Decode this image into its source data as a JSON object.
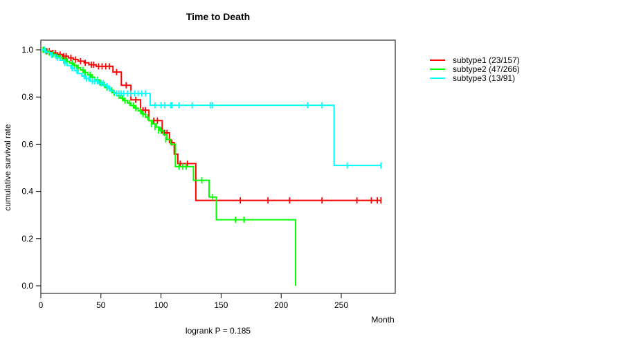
{
  "chart_data": {
    "type": "line",
    "subtype": "kaplan-meier-step-curves",
    "title": "Time to Death",
    "xlabel": "Month",
    "ylabel": "cumulative survival rate",
    "footer": "logrank P = 0.185",
    "grid": false,
    "legend_position": "right-outside",
    "colors": {
      "box": "#404040",
      "tick": "#000000",
      "text": "#000000"
    },
    "x_axis": {
      "ticks": [
        0,
        50,
        100,
        150,
        200,
        250
      ],
      "range": [
        0,
        295
      ]
    },
    "y_axis": {
      "ticks": [
        1.0,
        0.8,
        0.6,
        0.4,
        0.2,
        0.0
      ],
      "range": [
        0.0,
        1.0
      ],
      "decimals": 1
    },
    "series": [
      {
        "name": "subtype1 (23/157)",
        "color": "#ff0000",
        "end_month": 283,
        "steps": [
          [
            0,
            1.0
          ],
          [
            4,
            0.994
          ],
          [
            9,
            0.987
          ],
          [
            14,
            0.98
          ],
          [
            18,
            0.973
          ],
          [
            23,
            0.966
          ],
          [
            27,
            0.959
          ],
          [
            31,
            0.952
          ],
          [
            36,
            0.945
          ],
          [
            40,
            0.937
          ],
          [
            46,
            0.93
          ],
          [
            60,
            0.906
          ],
          [
            67,
            0.85
          ],
          [
            75,
            0.788
          ],
          [
            83,
            0.744
          ],
          [
            90,
            0.7
          ],
          [
            101,
            0.648
          ],
          [
            107,
            0.607
          ],
          [
            111,
            0.558
          ],
          [
            114,
            0.518
          ],
          [
            129,
            0.362
          ]
        ],
        "censors": [
          [
            2,
            1.0
          ],
          [
            5,
            0.994
          ],
          [
            7,
            0.994
          ],
          [
            10,
            0.987
          ],
          [
            12,
            0.987
          ],
          [
            16,
            0.98
          ],
          [
            19,
            0.973
          ],
          [
            21,
            0.973
          ],
          [
            25,
            0.966
          ],
          [
            29,
            0.959
          ],
          [
            33,
            0.952
          ],
          [
            37,
            0.945
          ],
          [
            42,
            0.937
          ],
          [
            44,
            0.937
          ],
          [
            48,
            0.93
          ],
          [
            51,
            0.93
          ],
          [
            54,
            0.93
          ],
          [
            57,
            0.93
          ],
          [
            63,
            0.906
          ],
          [
            71,
            0.85
          ],
          [
            79,
            0.788
          ],
          [
            85,
            0.744
          ],
          [
            87,
            0.744
          ],
          [
            94,
            0.7
          ],
          [
            97,
            0.7
          ],
          [
            103,
            0.648
          ],
          [
            105,
            0.648
          ],
          [
            109,
            0.607
          ],
          [
            116,
            0.518
          ],
          [
            122,
            0.518
          ],
          [
            166,
            0.362
          ],
          [
            189,
            0.362
          ],
          [
            207,
            0.362
          ],
          [
            234,
            0.362
          ],
          [
            263,
            0.362
          ],
          [
            275,
            0.362
          ],
          [
            280,
            0.362
          ],
          [
            283,
            0.362
          ]
        ]
      },
      {
        "name": "subtype2 (47/266)",
        "color": "#00ff00",
        "end_month": 212,
        "steps": [
          [
            0,
            1.0
          ],
          [
            3,
            0.994
          ],
          [
            6,
            0.988
          ],
          [
            9,
            0.981
          ],
          [
            12,
            0.974
          ],
          [
            15,
            0.967
          ],
          [
            18,
            0.959
          ],
          [
            21,
            0.951
          ],
          [
            24,
            0.943
          ],
          [
            27,
            0.934
          ],
          [
            30,
            0.924
          ],
          [
            33,
            0.914
          ],
          [
            36,
            0.904
          ],
          [
            39,
            0.894
          ],
          [
            42,
            0.884
          ],
          [
            45,
            0.873
          ],
          [
            48,
            0.862
          ],
          [
            51,
            0.851
          ],
          [
            54,
            0.84
          ],
          [
            57,
            0.829
          ],
          [
            60,
            0.818
          ],
          [
            63,
            0.806
          ],
          [
            66,
            0.795
          ],
          [
            69,
            0.785
          ],
          [
            72,
            0.775
          ],
          [
            75,
            0.764
          ],
          [
            78,
            0.753
          ],
          [
            81,
            0.741
          ],
          [
            84,
            0.728
          ],
          [
            87,
            0.714
          ],
          [
            90,
            0.7
          ],
          [
            93,
            0.686
          ],
          [
            96,
            0.672
          ],
          [
            99,
            0.658
          ],
          [
            102,
            0.64
          ],
          [
            105,
            0.62
          ],
          [
            108,
            0.6
          ],
          [
            112,
            0.505
          ],
          [
            127,
            0.447
          ],
          [
            140,
            0.376
          ],
          [
            146,
            0.28
          ],
          [
            212,
            0.0
          ]
        ],
        "censors": [
          [
            2,
            1.0
          ],
          [
            4,
            0.994
          ],
          [
            7,
            0.988
          ],
          [
            10,
            0.981
          ],
          [
            13,
            0.974
          ],
          [
            16,
            0.967
          ],
          [
            20,
            0.959
          ],
          [
            22,
            0.951
          ],
          [
            26,
            0.943
          ],
          [
            28,
            0.934
          ],
          [
            31,
            0.924
          ],
          [
            35,
            0.914
          ],
          [
            37,
            0.904
          ],
          [
            41,
            0.894
          ],
          [
            43,
            0.884
          ],
          [
            47,
            0.873
          ],
          [
            49,
            0.862
          ],
          [
            53,
            0.851
          ],
          [
            55,
            0.84
          ],
          [
            59,
            0.829
          ],
          [
            61,
            0.818
          ],
          [
            65,
            0.806
          ],
          [
            68,
            0.795
          ],
          [
            70,
            0.785
          ],
          [
            74,
            0.775
          ],
          [
            77,
            0.764
          ],
          [
            79,
            0.753
          ],
          [
            83,
            0.741
          ],
          [
            85,
            0.728
          ],
          [
            89,
            0.714
          ],
          [
            92,
            0.686
          ],
          [
            95,
            0.672
          ],
          [
            98,
            0.658
          ],
          [
            100,
            0.658
          ],
          [
            104,
            0.62
          ],
          [
            115,
            0.505
          ],
          [
            118,
            0.505
          ],
          [
            121,
            0.505
          ],
          [
            134,
            0.447
          ],
          [
            143,
            0.376
          ],
          [
            162,
            0.28
          ],
          [
            169,
            0.28
          ]
        ]
      },
      {
        "name": "subtype3 (13/91)",
        "color": "#00ffff",
        "end_month": 283,
        "steps": [
          [
            0,
            1.0
          ],
          [
            4,
            0.989
          ],
          [
            8,
            0.978
          ],
          [
            12,
            0.967
          ],
          [
            16,
            0.956
          ],
          [
            19,
            0.944
          ],
          [
            22,
            0.933
          ],
          [
            25,
            0.922
          ],
          [
            28,
            0.911
          ],
          [
            31,
            0.9
          ],
          [
            34,
            0.889
          ],
          [
            37,
            0.878
          ],
          [
            41,
            0.867
          ],
          [
            48,
            0.858
          ],
          [
            53,
            0.847
          ],
          [
            56,
            0.836
          ],
          [
            58,
            0.826
          ],
          [
            61,
            0.815
          ],
          [
            91,
            0.765
          ],
          [
            244,
            0.51
          ]
        ],
        "censors": [
          [
            3,
            1.0
          ],
          [
            9,
            0.978
          ],
          [
            14,
            0.967
          ],
          [
            20,
            0.944
          ],
          [
            26,
            0.922
          ],
          [
            30,
            0.911
          ],
          [
            36,
            0.889
          ],
          [
            38,
            0.878
          ],
          [
            40,
            0.878
          ],
          [
            43,
            0.867
          ],
          [
            45,
            0.867
          ],
          [
            47,
            0.867
          ],
          [
            50,
            0.858
          ],
          [
            52,
            0.858
          ],
          [
            55,
            0.847
          ],
          [
            57,
            0.836
          ],
          [
            63,
            0.815
          ],
          [
            65,
            0.815
          ],
          [
            67,
            0.815
          ],
          [
            69,
            0.815
          ],
          [
            72,
            0.815
          ],
          [
            75,
            0.815
          ],
          [
            78,
            0.815
          ],
          [
            81,
            0.815
          ],
          [
            84,
            0.815
          ],
          [
            87,
            0.815
          ],
          [
            95,
            0.765
          ],
          [
            100,
            0.765
          ],
          [
            103,
            0.765
          ],
          [
            108,
            0.765
          ],
          [
            109,
            0.765
          ],
          [
            115,
            0.765
          ],
          [
            126,
            0.765
          ],
          [
            141,
            0.765
          ],
          [
            143,
            0.765
          ],
          [
            222,
            0.765
          ],
          [
            234,
            0.765
          ],
          [
            255,
            0.51
          ],
          [
            283,
            0.51
          ]
        ]
      }
    ]
  }
}
